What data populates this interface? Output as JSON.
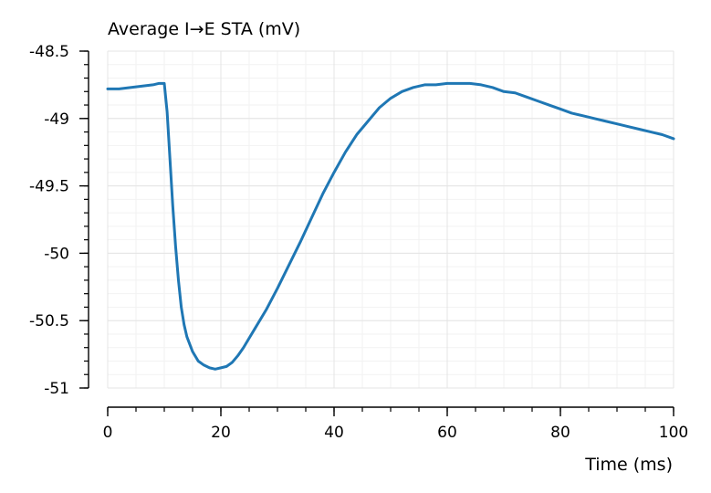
{
  "chart_data": {
    "type": "line",
    "title": "Average I→E STA (mV)",
    "xlabel": "Time (ms)",
    "ylabel": "",
    "xlim": [
      0,
      100
    ],
    "ylim": [
      -51,
      -48.5
    ],
    "xticks": [
      0,
      20,
      40,
      60,
      80,
      100
    ],
    "xtick_labels": [
      "0",
      "20",
      "40",
      "60",
      "80",
      "100"
    ],
    "yticks": [
      -51,
      -50.5,
      -50,
      -49.5,
      -49,
      -48.5
    ],
    "ytick_labels": [
      "-51",
      "-50.5",
      "-50",
      "-49.5",
      "-49",
      "-48.5"
    ],
    "grid": true,
    "series_color": "#1f77b4",
    "series": [
      {
        "x": [
          0,
          2,
          4,
          6,
          8,
          9,
          10,
          10.5,
          11,
          11.5,
          12,
          12.5,
          13,
          13.5,
          14,
          15,
          16,
          17,
          18,
          19,
          20,
          21,
          22,
          23,
          24,
          25,
          26,
          28,
          30,
          32,
          34,
          36,
          38,
          40,
          42,
          44,
          46,
          48,
          50,
          52,
          54,
          56,
          58,
          60,
          62,
          64,
          66,
          68,
          70,
          72,
          74,
          76,
          78,
          80,
          82,
          84,
          86,
          88,
          90,
          92,
          94,
          96,
          98,
          100
        ],
        "y": [
          -48.78,
          -48.78,
          -48.77,
          -48.76,
          -48.75,
          -48.74,
          -48.74,
          -48.95,
          -49.3,
          -49.65,
          -49.95,
          -50.2,
          -50.4,
          -50.53,
          -50.62,
          -50.73,
          -50.8,
          -50.83,
          -50.85,
          -50.86,
          -50.85,
          -50.84,
          -50.81,
          -50.76,
          -50.7,
          -50.63,
          -50.56,
          -50.42,
          -50.26,
          -50.09,
          -49.92,
          -49.74,
          -49.56,
          -49.4,
          -49.25,
          -49.12,
          -49.02,
          -48.92,
          -48.85,
          -48.8,
          -48.77,
          -48.75,
          -48.75,
          -48.74,
          -48.74,
          -48.74,
          -48.75,
          -48.77,
          -48.8,
          -48.81,
          -48.84,
          -48.87,
          -48.9,
          -48.93,
          -48.96,
          -48.98,
          -49.0,
          -49.02,
          -49.04,
          -49.06,
          -49.08,
          -49.1,
          -49.12,
          -49.15
        ]
      }
    ]
  }
}
